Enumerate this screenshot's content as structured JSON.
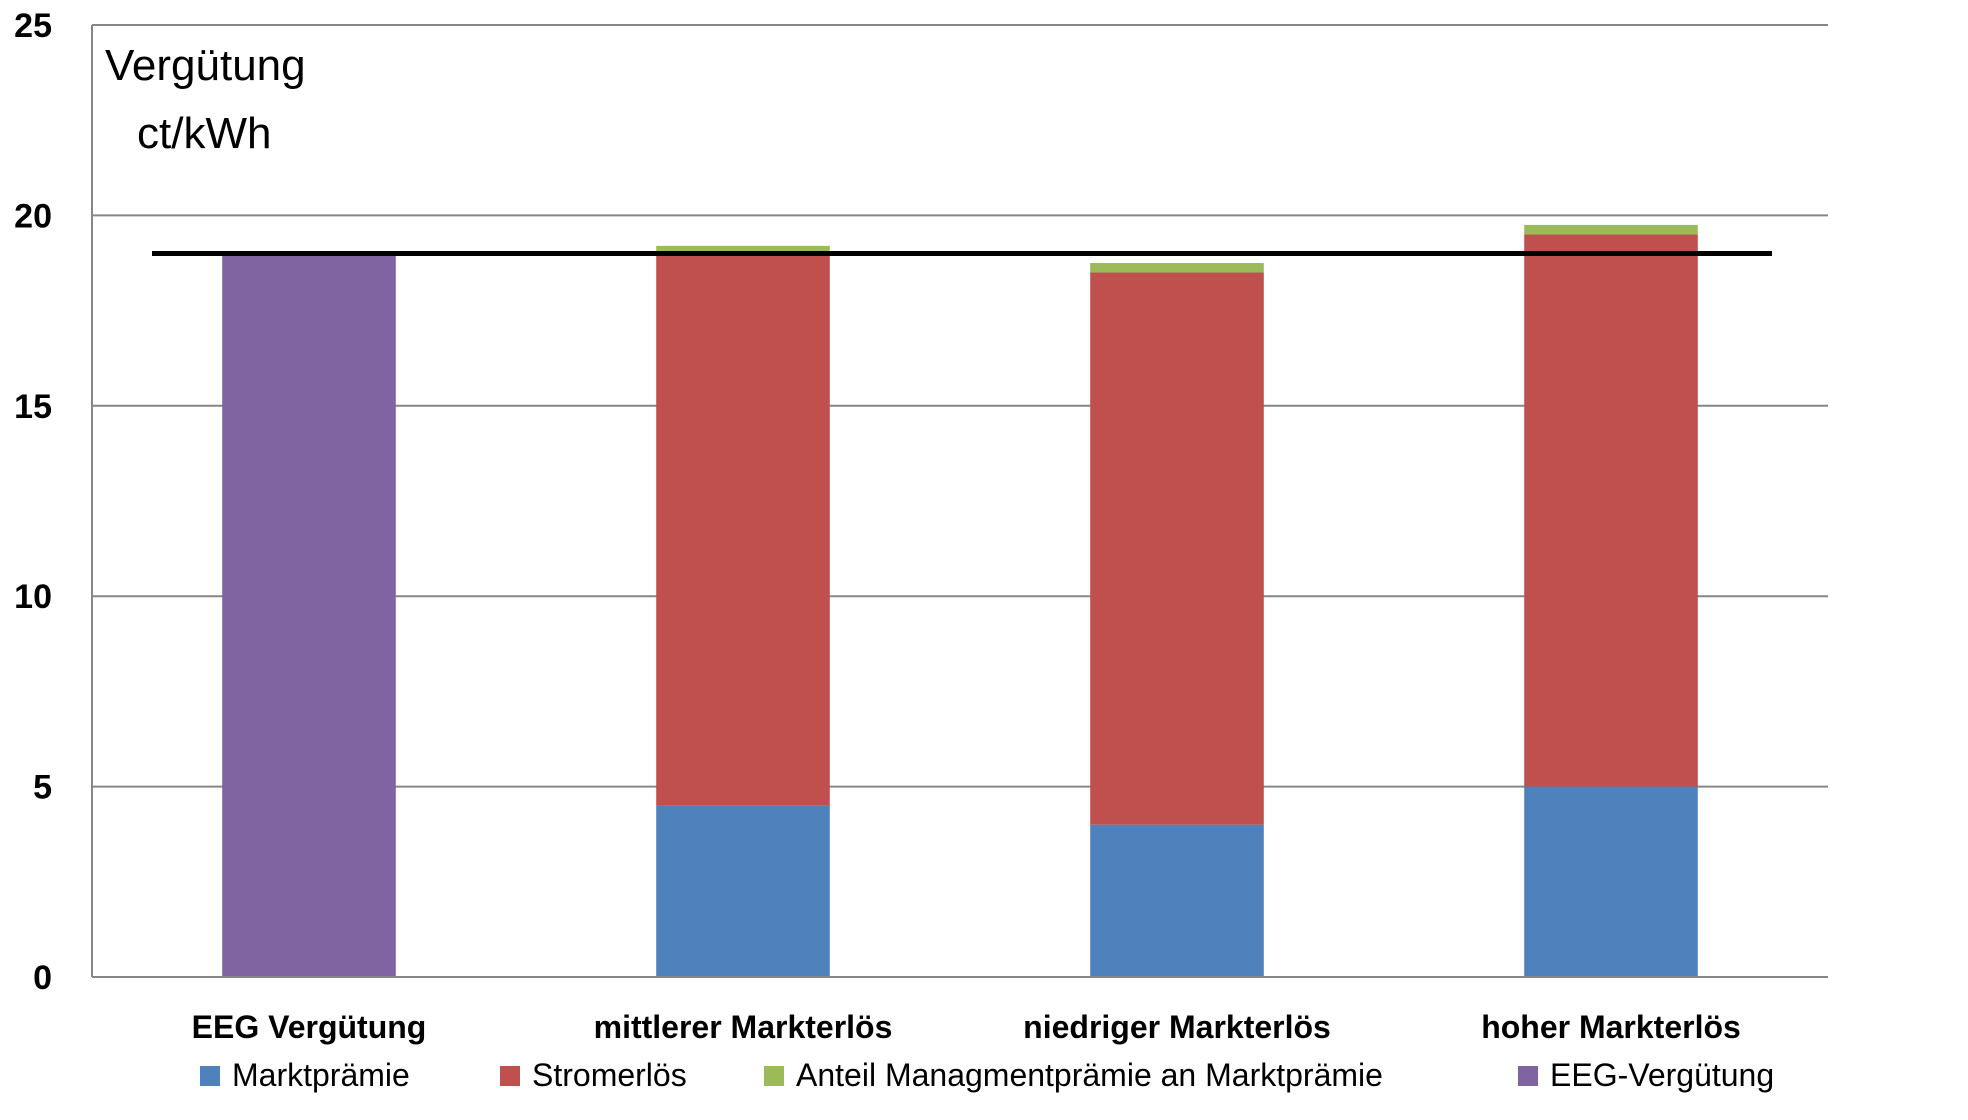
{
  "chart_data": {
    "type": "bar",
    "stacked": true,
    "title": "",
    "ylabel_lines": [
      "Vergütung",
      "ct/kWh"
    ],
    "xlabel": "",
    "ylim": [
      0,
      25
    ],
    "yticks": [
      0,
      5,
      10,
      15,
      20,
      25
    ],
    "grid": true,
    "legend_position": "bottom",
    "categories": [
      "EEG Vergütung",
      "mittlerer Markterlös",
      "niedriger Markterlös",
      "hoher Markterlös"
    ],
    "series": [
      {
        "name": "Marktprämie",
        "color": "#4F81BD",
        "values": [
          0,
          4.5,
          4.0,
          5.0
        ]
      },
      {
        "name": "Stromerlös",
        "color": "#C0504D",
        "values": [
          0,
          14.5,
          14.5,
          14.5
        ]
      },
      {
        "name": "Anteil Managmentprämie an Marktprämie",
        "color": "#9BBB59",
        "values": [
          0,
          0.2,
          0.25,
          0.25
        ]
      },
      {
        "name": "EEG-Vergütung",
        "color": "#8064A2",
        "values": [
          19.0,
          0,
          0,
          0
        ]
      }
    ],
    "reference_line": {
      "value": 19.0,
      "color": "#000000"
    }
  }
}
